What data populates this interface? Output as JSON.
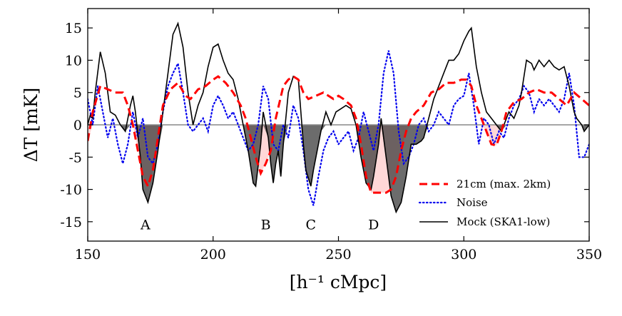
{
  "chart_data": {
    "type": "line",
    "title": "",
    "xlabel": "[h⁻¹ cMpc]",
    "ylabel": "ΔT [mK]",
    "xlim": [
      150,
      350
    ],
    "ylim": [
      -18,
      18
    ],
    "xticks": [
      "150",
      "200",
      "250",
      "300",
      "350"
    ],
    "yticks": [
      "15",
      "10",
      "5",
      "0",
      "-5",
      "-10",
      "-15"
    ],
    "legend_position": "lower-right",
    "annotations": [
      {
        "text": "A",
        "x": 173,
        "y": -15.5
      },
      {
        "text": "B",
        "x": 221,
        "y": -15.5
      },
      {
        "text": "C",
        "x": 239,
        "y": -15.5
      },
      {
        "text": "D",
        "x": 264,
        "y": -15.5
      }
    ],
    "series": [
      {
        "name": "21cm (max. 2km)",
        "color": "#ff0000",
        "style": "dashed",
        "points": [
          [
            150,
            -2.5
          ],
          [
            152,
            2
          ],
          [
            155,
            6
          ],
          [
            158,
            5.5
          ],
          [
            161,
            5
          ],
          [
            164,
            5
          ],
          [
            166,
            3
          ],
          [
            168,
            0
          ],
          [
            170,
            -4
          ],
          [
            172,
            -8
          ],
          [
            174,
            -9.5
          ],
          [
            176,
            -7
          ],
          [
            178,
            -2
          ],
          [
            180,
            3
          ],
          [
            183,
            5.5
          ],
          [
            186,
            6.5
          ],
          [
            189,
            4.5
          ],
          [
            191,
            4
          ],
          [
            194,
            5.5
          ],
          [
            197,
            6
          ],
          [
            200,
            7
          ],
          [
            202,
            7.5
          ],
          [
            205,
            6.5
          ],
          [
            208,
            5
          ],
          [
            211,
            3
          ],
          [
            213,
            1
          ],
          [
            215,
            -2
          ],
          [
            217,
            -5
          ],
          [
            219,
            -7.5
          ],
          [
            221,
            -6
          ],
          [
            223,
            -4
          ],
          [
            225,
            1
          ],
          [
            228,
            6
          ],
          [
            230,
            7
          ],
          [
            232,
            7.5
          ],
          [
            234,
            7
          ],
          [
            236,
            5
          ],
          [
            238,
            4
          ],
          [
            241,
            4.5
          ],
          [
            244,
            5
          ],
          [
            246,
            4.5
          ],
          [
            248,
            4
          ],
          [
            250,
            4.5
          ],
          [
            252,
            4
          ],
          [
            255,
            3
          ],
          [
            257,
            1
          ],
          [
            259,
            -3
          ],
          [
            261,
            -8
          ],
          [
            263,
            -10.5
          ],
          [
            266,
            -10.5
          ],
          [
            269,
            -10.5
          ],
          [
            271,
            -10
          ],
          [
            273,
            -8
          ],
          [
            275,
            -4
          ],
          [
            277,
            -1
          ],
          [
            279,
            1
          ],
          [
            281,
            2
          ],
          [
            284,
            3
          ],
          [
            287,
            5
          ],
          [
            290,
            5.5
          ],
          [
            293,
            6.5
          ],
          [
            296,
            6.5
          ],
          [
            299,
            7
          ],
          [
            301,
            7
          ],
          [
            303,
            6
          ],
          [
            305,
            3
          ],
          [
            307,
            1
          ],
          [
            309,
            -1
          ],
          [
            311,
            -3
          ],
          [
            313,
            -3.2
          ],
          [
            315,
            -1
          ],
          [
            317,
            2
          ],
          [
            320,
            3.5
          ],
          [
            323,
            4
          ],
          [
            326,
            5
          ],
          [
            329,
            5.5
          ],
          [
            332,
            5
          ],
          [
            335,
            5
          ],
          [
            338,
            4
          ],
          [
            341,
            3
          ],
          [
            344,
            5
          ],
          [
            347,
            4
          ],
          [
            350,
            3
          ]
        ]
      },
      {
        "name": "Noise",
        "color": "#0000ee",
        "style": "dotted",
        "points": [
          [
            150,
            4
          ],
          [
            152,
            0
          ],
          [
            154,
            6
          ],
          [
            156,
            2
          ],
          [
            158,
            -2
          ],
          [
            160,
            1
          ],
          [
            162,
            -3
          ],
          [
            164,
            -6
          ],
          [
            166,
            -3
          ],
          [
            168,
            2
          ],
          [
            170,
            -2
          ],
          [
            172,
            1
          ],
          [
            174,
            -5
          ],
          [
            176,
            -6
          ],
          [
            178,
            -3
          ],
          [
            180,
            2
          ],
          [
            182,
            6
          ],
          [
            184,
            8
          ],
          [
            186,
            9.5
          ],
          [
            188,
            5
          ],
          [
            190,
            0
          ],
          [
            192,
            -1
          ],
          [
            194,
            0
          ],
          [
            196,
            1
          ],
          [
            198,
            -1
          ],
          [
            200,
            3
          ],
          [
            202,
            4.5
          ],
          [
            204,
            3
          ],
          [
            206,
            1
          ],
          [
            208,
            2
          ],
          [
            210,
            0
          ],
          [
            212,
            -2
          ],
          [
            214,
            -4
          ],
          [
            216,
            -3
          ],
          [
            218,
            0
          ],
          [
            220,
            6
          ],
          [
            222,
            4
          ],
          [
            224,
            -3
          ],
          [
            226,
            -4
          ],
          [
            228,
            0
          ],
          [
            230,
            -2
          ],
          [
            232,
            3
          ],
          [
            234,
            1
          ],
          [
            236,
            -4
          ],
          [
            238,
            -10
          ],
          [
            240,
            -12.5
          ],
          [
            242,
            -8
          ],
          [
            244,
            -4
          ],
          [
            246,
            -2
          ],
          [
            248,
            -1
          ],
          [
            250,
            -3
          ],
          [
            252,
            -2
          ],
          [
            254,
            -1
          ],
          [
            256,
            -4
          ],
          [
            258,
            -2
          ],
          [
            260,
            2
          ],
          [
            262,
            -1
          ],
          [
            264,
            -4
          ],
          [
            266,
            0
          ],
          [
            268,
            8
          ],
          [
            270,
            11.5
          ],
          [
            272,
            8
          ],
          [
            274,
            -1
          ],
          [
            276,
            -6
          ],
          [
            278,
            -5
          ],
          [
            280,
            -3
          ],
          [
            282,
            0
          ],
          [
            284,
            1
          ],
          [
            286,
            -1
          ],
          [
            288,
            0
          ],
          [
            290,
            2
          ],
          [
            292,
            1
          ],
          [
            294,
            0
          ],
          [
            296,
            3
          ],
          [
            298,
            4
          ],
          [
            300,
            4.5
          ],
          [
            302,
            8
          ],
          [
            304,
            3
          ],
          [
            306,
            -3
          ],
          [
            308,
            1
          ],
          [
            310,
            0
          ],
          [
            312,
            -3
          ],
          [
            314,
            -1
          ],
          [
            316,
            -2
          ],
          [
            318,
            1
          ],
          [
            320,
            3
          ],
          [
            322,
            4
          ],
          [
            324,
            6
          ],
          [
            326,
            5
          ],
          [
            328,
            2
          ],
          [
            330,
            4
          ],
          [
            332,
            3
          ],
          [
            334,
            4
          ],
          [
            336,
            3
          ],
          [
            338,
            2
          ],
          [
            340,
            4
          ],
          [
            342,
            8
          ],
          [
            344,
            3
          ],
          [
            346,
            -5
          ],
          [
            348,
            -5
          ],
          [
            350,
            -3
          ]
        ]
      },
      {
        "name": "Mock (SKA1-low)",
        "color": "#000000",
        "style": "solid",
        "points": [
          [
            150,
            0
          ],
          [
            151,
            1.5
          ],
          [
            152,
            1
          ],
          [
            153,
            5
          ],
          [
            155,
            11.3
          ],
          [
            157,
            8
          ],
          [
            159,
            2
          ],
          [
            161,
            1.5
          ],
          [
            163,
            0
          ],
          [
            165,
            -1
          ],
          [
            167,
            3
          ],
          [
            168,
            4.5
          ],
          [
            169,
            2
          ],
          [
            171,
            -5
          ],
          [
            172,
            -10
          ],
          [
            174,
            -12
          ],
          [
            176,
            -9
          ],
          [
            178,
            -4
          ],
          [
            180,
            2
          ],
          [
            182,
            8
          ],
          [
            184,
            14
          ],
          [
            186,
            15.7
          ],
          [
            188,
            12
          ],
          [
            190,
            5
          ],
          [
            192,
            0
          ],
          [
            194,
            3
          ],
          [
            196,
            5
          ],
          [
            198,
            9
          ],
          [
            200,
            12
          ],
          [
            202,
            12.5
          ],
          [
            204,
            10
          ],
          [
            206,
            8
          ],
          [
            208,
            7
          ],
          [
            210,
            4
          ],
          [
            212,
            0
          ],
          [
            214,
            -4
          ],
          [
            216,
            -9
          ],
          [
            217,
            -9.5
          ],
          [
            219,
            -3
          ],
          [
            220,
            2
          ],
          [
            222,
            -2
          ],
          [
            223,
            -6
          ],
          [
            224,
            -9
          ],
          [
            225,
            -6
          ],
          [
            226,
            -4
          ],
          [
            227,
            -8
          ],
          [
            228,
            -3
          ],
          [
            230,
            5
          ],
          [
            232,
            7.5
          ],
          [
            234,
            7
          ],
          [
            235,
            2
          ],
          [
            236,
            -3
          ],
          [
            237,
            -7
          ],
          [
            239,
            -9.5
          ],
          [
            240,
            -7
          ],
          [
            241,
            -5
          ],
          [
            243,
            -1
          ],
          [
            245,
            2
          ],
          [
            247,
            0
          ],
          [
            249,
            2
          ],
          [
            251,
            2.5
          ],
          [
            253,
            3
          ],
          [
            255,
            2.5
          ],
          [
            257,
            0
          ],
          [
            259,
            -5
          ],
          [
            261,
            -9
          ],
          [
            263,
            -10
          ],
          [
            264,
            -8
          ],
          [
            266,
            -3
          ],
          [
            267,
            1
          ],
          [
            269,
            -5
          ],
          [
            271,
            -11
          ],
          [
            273,
            -13.5
          ],
          [
            275,
            -12
          ],
          [
            277,
            -8
          ],
          [
            279,
            -3
          ],
          [
            281,
            -3
          ],
          [
            283,
            -2.5
          ],
          [
            284,
            -2
          ],
          [
            286,
            1
          ],
          [
            288,
            4
          ],
          [
            290,
            6
          ],
          [
            292,
            8
          ],
          [
            294,
            10
          ],
          [
            296,
            10
          ],
          [
            298,
            11
          ],
          [
            300,
            13
          ],
          [
            302,
            14.5
          ],
          [
            303,
            15
          ],
          [
            305,
            9
          ],
          [
            307,
            5
          ],
          [
            309,
            2
          ],
          [
            311,
            1
          ],
          [
            313,
            0
          ],
          [
            315,
            -1
          ],
          [
            317,
            1
          ],
          [
            318,
            2
          ],
          [
            320,
            1
          ],
          [
            322,
            3
          ],
          [
            323,
            5
          ],
          [
            325,
            10
          ],
          [
            327,
            9.5
          ],
          [
            328,
            8.5
          ],
          [
            330,
            10
          ],
          [
            332,
            9
          ],
          [
            334,
            10
          ],
          [
            336,
            9
          ],
          [
            338,
            8.5
          ],
          [
            340,
            9
          ],
          [
            342,
            6
          ],
          [
            344,
            2
          ],
          [
            345,
            1
          ],
          [
            347,
            0
          ],
          [
            348,
            -1
          ],
          [
            350,
            0
          ]
        ]
      }
    ]
  }
}
